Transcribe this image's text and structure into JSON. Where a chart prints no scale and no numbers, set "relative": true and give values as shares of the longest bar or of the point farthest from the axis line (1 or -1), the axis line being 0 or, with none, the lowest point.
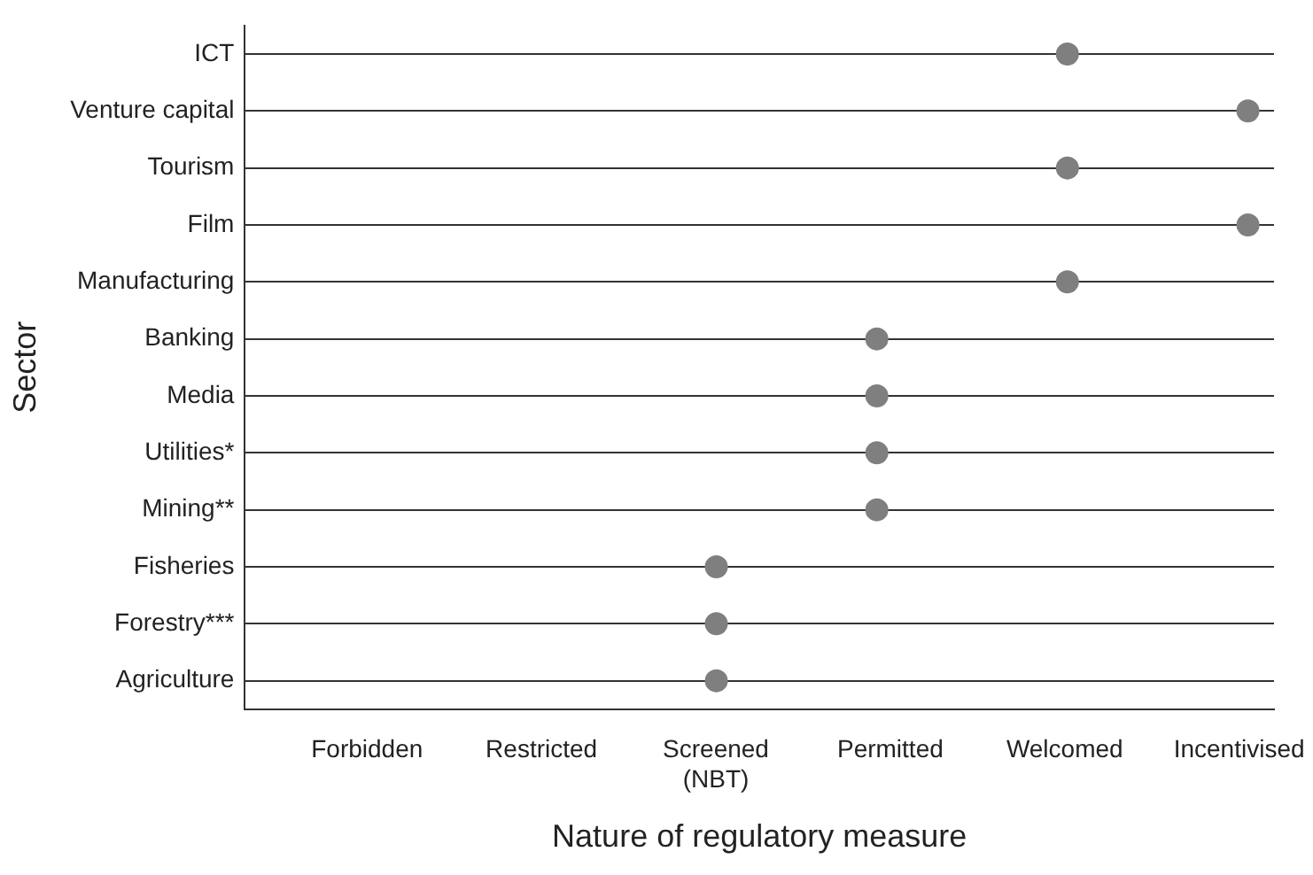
{
  "chart_data": {
    "type": "scatter",
    "orientation": "horizontal",
    "relative": true,
    "xlabel": "Nature of regulatory measure",
    "ylabel": "Sector",
    "categories": [
      "ICT",
      "Venture capital",
      "Tourism",
      "Film",
      "Manufacturing",
      "Banking",
      "Media",
      "Utilities*",
      "Mining**",
      "Fisheries",
      "Forestry***",
      "Agriculture"
    ],
    "series": [
      {
        "color": "#7f7f7f",
        "values": [
          0.82,
          1,
          0.82,
          1,
          0.82,
          0.63,
          0.63,
          0.63,
          0.63,
          0.47,
          0.47,
          0.47
        ]
      }
    ],
    "annotations": [
      "Forbidden",
      "Restricted",
      "Screened\n(NBT)",
      "Permitted",
      "Welcomed",
      "Incentivised"
    ],
    "grid": "y",
    "marker": "circle"
  }
}
